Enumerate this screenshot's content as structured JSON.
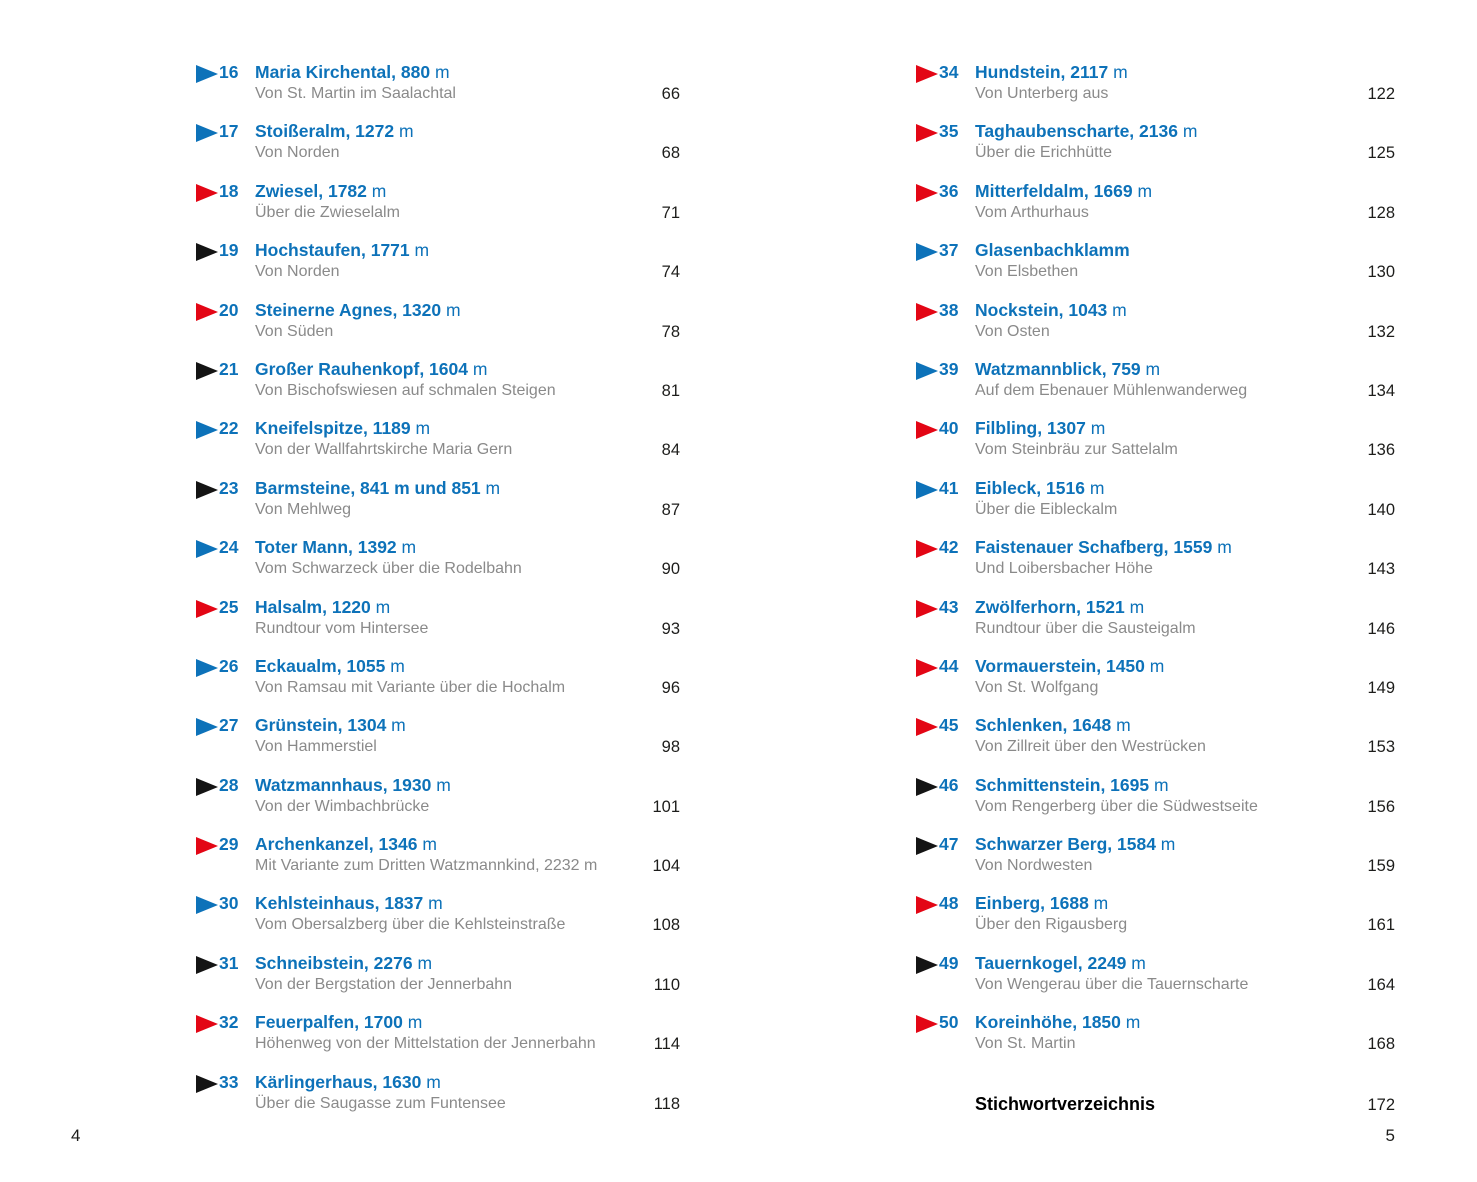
{
  "colors": {
    "blue": "#0d72b9",
    "red": "#e30615",
    "black": "#141414",
    "subtitle_gray": "#8a8a8a",
    "page_number": "#1d1d1b"
  },
  "meters_unit": "m",
  "columns": {
    "left": {
      "entries": [
        {
          "num": "16",
          "arrow": "blue",
          "name": "Maria Kirchental,",
          "elev": "880",
          "unit": "m",
          "subtitle": "Von St. Martin im Saalachtal",
          "page": "66"
        },
        {
          "num": "17",
          "arrow": "blue",
          "name": "Stoißeralm,",
          "elev": "1272",
          "unit": "m",
          "subtitle": "Von Norden",
          "page": "68"
        },
        {
          "num": "18",
          "arrow": "red",
          "name": "Zwiesel,",
          "elev": "1782",
          "unit": "m",
          "subtitle": "Über die Zwieselalm",
          "page": "71"
        },
        {
          "num": "19",
          "arrow": "black",
          "name": "Hochstaufen,",
          "elev": "1771",
          "unit": "m",
          "subtitle": "Von Norden",
          "page": "74"
        },
        {
          "num": "20",
          "arrow": "red",
          "name": "Steinerne Agnes,",
          "elev": "1320",
          "unit": "m",
          "subtitle": "Von Süden",
          "page": "78"
        },
        {
          "num": "21",
          "arrow": "black",
          "name": "Großer Rauhenkopf,",
          "elev": "1604",
          "unit": "m",
          "subtitle": "Von Bischofswiesen auf schmalen Steigen",
          "page": "81"
        },
        {
          "num": "22",
          "arrow": "blue",
          "name": "Kneifelspitze,",
          "elev": "1189",
          "unit": "m",
          "subtitle": "Von der Wallfahrtskirche Maria Gern",
          "page": "84"
        },
        {
          "num": "23",
          "arrow": "black",
          "name": "Barmsteine,",
          "elev": "841 m und 851",
          "unit": "m",
          "subtitle": "Von Mehlweg",
          "page": "87"
        },
        {
          "num": "24",
          "arrow": "blue",
          "name": "Toter Mann,",
          "elev": "1392",
          "unit": "m",
          "subtitle": "Vom Schwarzeck über die Rodelbahn",
          "page": "90"
        },
        {
          "num": "25",
          "arrow": "red",
          "name": "Halsalm,",
          "elev": "1220",
          "unit": "m",
          "subtitle": "Rundtour vom Hintersee",
          "page": "93"
        },
        {
          "num": "26",
          "arrow": "blue",
          "name": "Eckaualm,",
          "elev": "1055",
          "unit": "m",
          "subtitle": "Von Ramsau mit Variante über die Hochalm",
          "page": "96"
        },
        {
          "num": "27",
          "arrow": "blue",
          "name": "Grünstein,",
          "elev": "1304",
          "unit": "m",
          "subtitle": "Von Hammerstiel",
          "page": "98"
        },
        {
          "num": "28",
          "arrow": "black",
          "name": "Watzmannhaus,",
          "elev": "1930",
          "unit": "m",
          "subtitle": "Von der Wimbachbrücke",
          "page": "101"
        },
        {
          "num": "29",
          "arrow": "red",
          "name": "Archenkanzel,",
          "elev": "1346",
          "unit": "m",
          "subtitle": "Mit Variante zum Dritten Watzmannkind, 2232 m",
          "page": "104"
        },
        {
          "num": "30",
          "arrow": "blue",
          "name": "Kehlsteinhaus,",
          "elev": "1837",
          "unit": "m",
          "subtitle": "Vom Obersalzberg über die Kehlsteinstraße",
          "page": "108"
        },
        {
          "num": "31",
          "arrow": "black",
          "name": "Schneibstein,",
          "elev": "2276",
          "unit": "m",
          "subtitle": "Von der Bergstation der Jennerbahn",
          "page": "110"
        },
        {
          "num": "32",
          "arrow": "red",
          "name": "Feuerpalfen,",
          "elev": "1700",
          "unit": "m",
          "subtitle": "Höhenweg von der Mittelstation der Jennerbahn",
          "page": "114"
        },
        {
          "num": "33",
          "arrow": "black",
          "name": "Kärlingerhaus,",
          "elev": "1630",
          "unit": "m",
          "subtitle": "Über die Saugasse zum Funtensee",
          "page": "118"
        }
      ]
    },
    "right": {
      "entries": [
        {
          "num": "34",
          "arrow": "red",
          "name": "Hundstein,",
          "elev": "2117",
          "unit": "m",
          "subtitle": "Von Unterberg aus",
          "page": "122"
        },
        {
          "num": "35",
          "arrow": "red",
          "name": "Taghaubenscharte,",
          "elev": "2136",
          "unit": "m",
          "subtitle": "Über die Erichhütte",
          "page": "125"
        },
        {
          "num": "36",
          "arrow": "red",
          "name": "Mitterfeldalm,",
          "elev": "1669",
          "unit": "m",
          "subtitle": "Vom Arthurhaus",
          "page": "128"
        },
        {
          "num": "37",
          "arrow": "blue",
          "name": "Glasenbachklamm",
          "elev": "",
          "unit": "",
          "subtitle": "Von Elsbethen",
          "page": "130"
        },
        {
          "num": "38",
          "arrow": "red",
          "name": "Nockstein,",
          "elev": "1043",
          "unit": "m",
          "subtitle": "Von Osten",
          "page": "132"
        },
        {
          "num": "39",
          "arrow": "blue",
          "name": "Watzmannblick,",
          "elev": "759",
          "unit": "m",
          "subtitle": "Auf dem Ebenauer Mühlenwanderweg",
          "page": "134"
        },
        {
          "num": "40",
          "arrow": "red",
          "name": "Filbling,",
          "elev": "1307",
          "unit": "m",
          "subtitle": "Vom Steinbräu zur Sattelalm",
          "page": "136"
        },
        {
          "num": "41",
          "arrow": "blue",
          "name": "Eibleck,",
          "elev": "1516",
          "unit": "m",
          "subtitle": "Über die Eibleckalm",
          "page": "140"
        },
        {
          "num": "42",
          "arrow": "red",
          "name": "Faistenauer Schafberg,",
          "elev": "1559",
          "unit": "m",
          "subtitle": "Und Loibersbacher Höhe",
          "page": "143"
        },
        {
          "num": "43",
          "arrow": "red",
          "name": "Zwölferhorn,",
          "elev": "1521",
          "unit": "m",
          "subtitle": "Rundtour über die Sausteigalm",
          "page": "146"
        },
        {
          "num": "44",
          "arrow": "red",
          "name": "Vormauerstein,",
          "elev": "1450",
          "unit": "m",
          "subtitle": "Von St. Wolfgang",
          "page": "149"
        },
        {
          "num": "45",
          "arrow": "red",
          "name": "Schlenken,",
          "elev": "1648",
          "unit": "m",
          "subtitle": "Von Zillreit über den Westrücken",
          "page": "153"
        },
        {
          "num": "46",
          "arrow": "black",
          "name": "Schmittenstein,",
          "elev": "1695",
          "unit": "m",
          "subtitle": "Vom Rengerberg über die Südwestseite",
          "page": "156"
        },
        {
          "num": "47",
          "arrow": "black",
          "name": "Schwarzer Berg,",
          "elev": "1584",
          "unit": "m",
          "subtitle": "Von Nordwesten",
          "page": "159"
        },
        {
          "num": "48",
          "arrow": "red",
          "name": "Einberg,",
          "elev": "1688",
          "unit": "m",
          "subtitle": "Über den Rigausberg",
          "page": "161"
        },
        {
          "num": "49",
          "arrow": "black",
          "name": "Tauernkogel,",
          "elev": "2249",
          "unit": "m",
          "subtitle": "Von Wengerau über die Tauernscharte",
          "page": "164"
        },
        {
          "num": "50",
          "arrow": "red",
          "name": "Koreinhöhe,",
          "elev": "1850",
          "unit": "m",
          "subtitle": "Von St. Martin",
          "page": "168"
        }
      ],
      "index": {
        "label": "Stichwortverzeichnis",
        "page": "172"
      }
    }
  },
  "footer": {
    "left_page": "4",
    "right_page": "5"
  }
}
